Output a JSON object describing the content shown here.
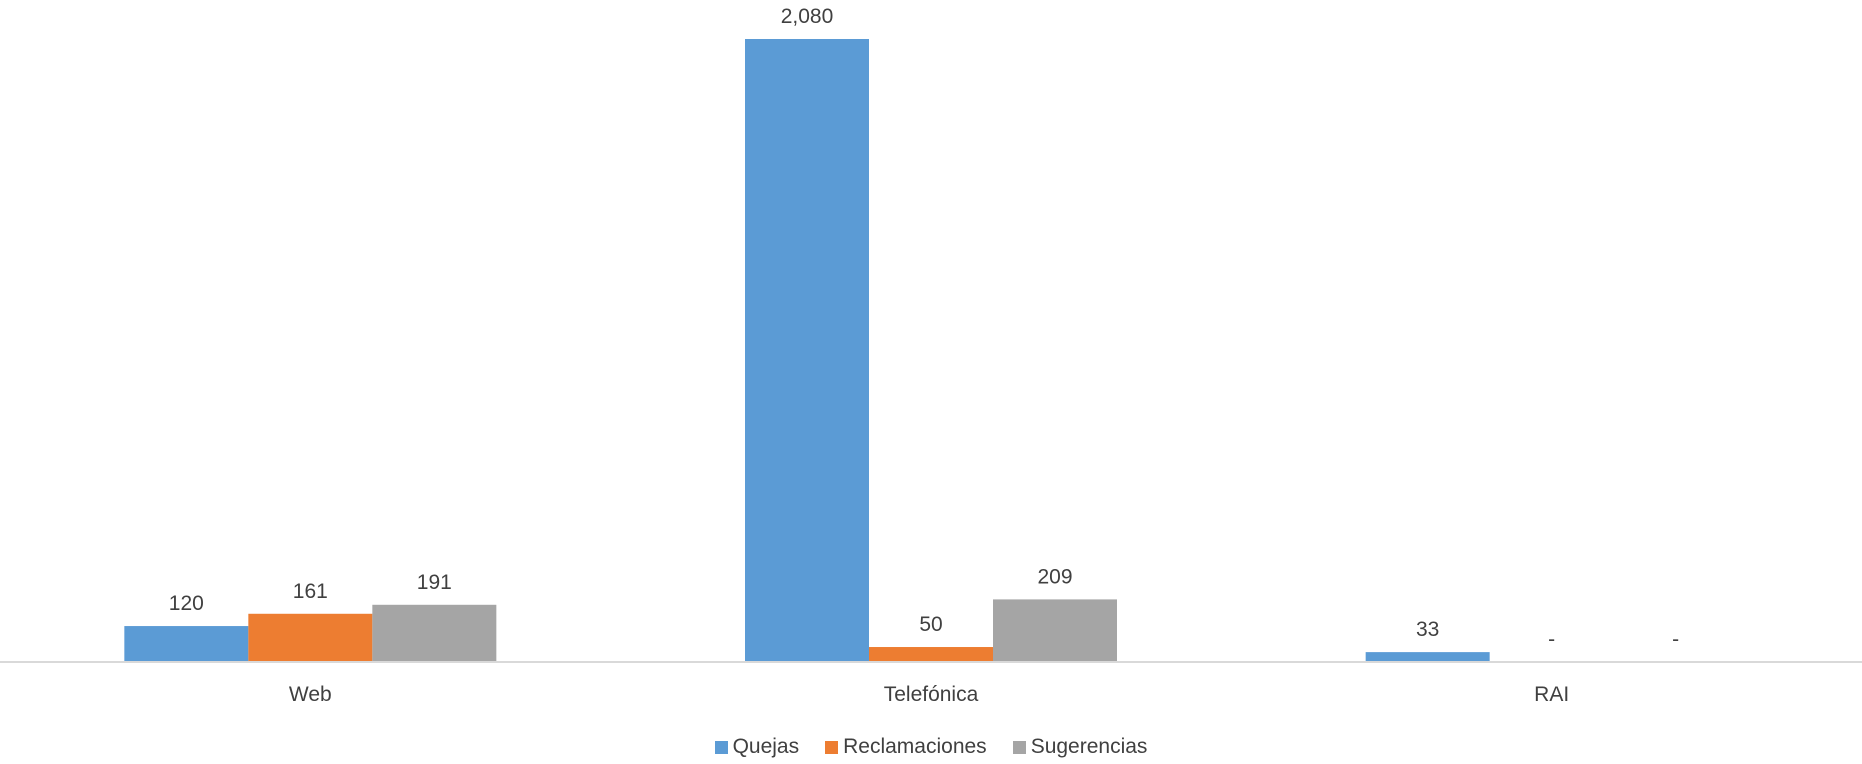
{
  "chart_data": {
    "type": "bar",
    "title": "",
    "xlabel": "",
    "ylabel": "",
    "categories": [
      "Web",
      "Telefónica",
      "RAI"
    ],
    "series": [
      {
        "name": "Quejas",
        "color": "#5b9bd5",
        "values": [
          120,
          2080,
          33
        ],
        "labels": [
          "120",
          "2,080",
          "33"
        ]
      },
      {
        "name": "Reclamaciones",
        "color": "#ed7d31",
        "values": [
          161,
          50,
          0
        ],
        "labels": [
          "161",
          "50",
          "-"
        ]
      },
      {
        "name": "Sugerencias",
        "color": "#a5a5a5",
        "values": [
          191,
          209,
          0
        ],
        "labels": [
          "191",
          "209",
          "-"
        ]
      }
    ],
    "ylim": [
      0,
      2080
    ],
    "grid": false,
    "legend_position": "bottom"
  }
}
